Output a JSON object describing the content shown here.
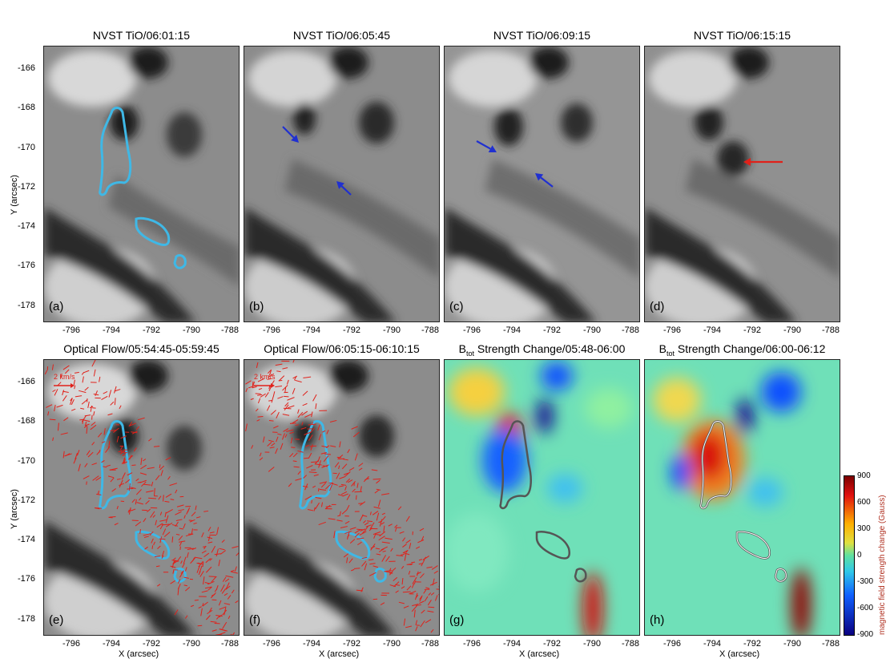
{
  "panels": [
    {
      "title": "NVST TiO/06:01:15",
      "label": "(a)"
    },
    {
      "title": "NVST TiO/06:05:45",
      "label": "(b)"
    },
    {
      "title": "NVST TiO/06:09:15",
      "label": "(c)"
    },
    {
      "title": "NVST TiO/06:15:15",
      "label": "(d)"
    },
    {
      "title": "Optical Flow/05:54:45-05:59:45",
      "label": "(e)",
      "scale": "2 km/s"
    },
    {
      "title": "Optical Flow/06:05:15-06:10:15",
      "label": "(f)",
      "scale": "2 km/s"
    },
    {
      "title_main": "B",
      "title_sub": "tot",
      "title_rest": " Strength Change/05:48-06:00",
      "label": "(g)"
    },
    {
      "title_main": "B",
      "title_sub": "tot",
      "title_rest": " Strength Change/06:00-06:12",
      "label": "(h)"
    }
  ],
  "x_ticks": [
    "-796",
    "-794",
    "-792",
    "-790",
    "-788"
  ],
  "y_ticks": [
    "-166",
    "-168",
    "-170",
    "-172",
    "-174",
    "-176",
    "-178"
  ],
  "x_axis_label": "X (arcsec)",
  "y_axis_label": "Y (arcsec)",
  "colorbar": {
    "ticks": [
      "900",
      "600",
      "300",
      "0",
      "-300",
      "-600",
      "-900"
    ],
    "label": "magnetic field strength change (Gauss)"
  },
  "colors": {
    "contour_cyan": "#3fb8e6",
    "contour_gray": "#555555",
    "arrow_blue": "#2030d0",
    "arrow_red": "#e0211a",
    "flow_red": "#e0211a"
  }
}
